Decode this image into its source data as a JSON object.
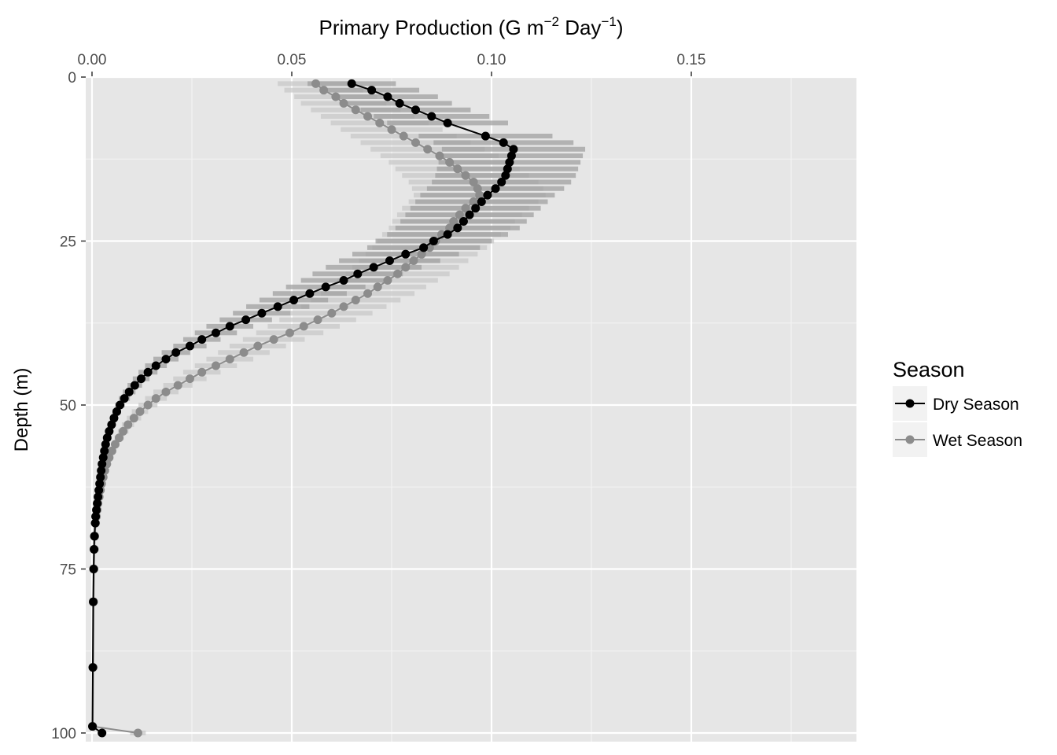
{
  "chart_data": {
    "type": "line",
    "title_main": "Primary Production (G m",
    "title_exp1": "−2",
    "title_mid": " Day",
    "title_exp2": "−1",
    "title_end": ")",
    "xaxis_position": "top",
    "ylabel": "Depth (m)",
    "yaxis_reversed": true,
    "xlim": [
      0.0,
      0.19
    ],
    "ylim": [
      0,
      101
    ],
    "xticks": [
      0.0,
      0.05,
      0.1,
      0.15
    ],
    "xtick_labels": [
      "0.00",
      "0.05",
      "0.10",
      "0.15"
    ],
    "yticks": [
      0,
      25,
      50,
      75,
      100
    ],
    "ytick_labels": [
      "0",
      "25",
      "50",
      "75",
      "100"
    ],
    "grid": true,
    "legend": {
      "title": "Season",
      "position": "right",
      "entries": [
        "Dry Season",
        "Wet Season"
      ]
    },
    "series": [
      {
        "name": "Dry Season",
        "color": "#000000",
        "errorbar_color": "#a0a0a0",
        "points": [
          [
            0.065,
            1
          ],
          [
            0.07,
            2
          ],
          [
            0.074,
            3
          ],
          [
            0.077,
            4
          ],
          [
            0.081,
            5
          ],
          [
            0.085,
            6
          ],
          [
            0.089,
            7
          ],
          [
            0.0985,
            9
          ],
          [
            0.103,
            10
          ],
          [
            0.1055,
            11
          ],
          [
            0.105,
            12
          ],
          [
            0.1045,
            13
          ],
          [
            0.104,
            14
          ],
          [
            0.1035,
            15
          ],
          [
            0.1025,
            16
          ],
          [
            0.101,
            17
          ],
          [
            0.099,
            18
          ],
          [
            0.0975,
            19
          ],
          [
            0.096,
            20
          ],
          [
            0.0945,
            21
          ],
          [
            0.093,
            22
          ],
          [
            0.0915,
            23
          ],
          [
            0.089,
            24
          ],
          [
            0.0855,
            25
          ],
          [
            0.083,
            26
          ],
          [
            0.0785,
            27
          ],
          [
            0.0745,
            28
          ],
          [
            0.0705,
            29
          ],
          [
            0.0665,
            30
          ],
          [
            0.063,
            31
          ],
          [
            0.0585,
            32
          ],
          [
            0.0545,
            33
          ],
          [
            0.0505,
            34
          ],
          [
            0.0465,
            35
          ],
          [
            0.0425,
            36
          ],
          [
            0.0385,
            37
          ],
          [
            0.0345,
            38
          ],
          [
            0.031,
            39
          ],
          [
            0.0275,
            40
          ],
          [
            0.0245,
            41
          ],
          [
            0.021,
            42
          ],
          [
            0.0185,
            43
          ],
          [
            0.016,
            44
          ],
          [
            0.014,
            45
          ],
          [
            0.0123,
            46
          ],
          [
            0.0107,
            47
          ],
          [
            0.0093,
            48
          ],
          [
            0.0081,
            49
          ],
          [
            0.007,
            50
          ],
          [
            0.0062,
            51
          ],
          [
            0.0055,
            52
          ],
          [
            0.0049,
            53
          ],
          [
            0.0043,
            54
          ],
          [
            0.0038,
            55
          ],
          [
            0.0034,
            56
          ],
          [
            0.0031,
            57
          ],
          [
            0.0028,
            58
          ],
          [
            0.0025,
            59
          ],
          [
            0.0023,
            60
          ],
          [
            0.0021,
            61
          ],
          [
            0.0019,
            62
          ],
          [
            0.0017,
            63
          ],
          [
            0.0015,
            64
          ],
          [
            0.0013,
            65
          ],
          [
            0.0011,
            66
          ],
          [
            0.0009,
            67
          ],
          [
            0.0008,
            68
          ],
          [
            0.0006,
            70
          ],
          [
            0.0005,
            72
          ],
          [
            0.0004,
            75
          ],
          [
            0.0003,
            80
          ],
          [
            0.0002,
            90
          ],
          [
            0.0001,
            99
          ],
          [
            0.0025,
            100
          ]
        ]
      },
      {
        "name": "Wet Season",
        "color": "#8c8c8c",
        "errorbar_color": "#c8c8c8",
        "points": [
          [
            0.056,
            1
          ],
          [
            0.058,
            2
          ],
          [
            0.061,
            3
          ],
          [
            0.063,
            4
          ],
          [
            0.066,
            5
          ],
          [
            0.069,
            6
          ],
          [
            0.072,
            7
          ],
          [
            0.075,
            8
          ],
          [
            0.078,
            9
          ],
          [
            0.081,
            10
          ],
          [
            0.084,
            11
          ],
          [
            0.087,
            12
          ],
          [
            0.0895,
            13
          ],
          [
            0.0915,
            14
          ],
          [
            0.0935,
            15
          ],
          [
            0.0955,
            16
          ],
          [
            0.0965,
            17
          ],
          [
            0.097,
            18
          ],
          [
            0.0955,
            19
          ],
          [
            0.0935,
            20
          ],
          [
            0.092,
            21
          ],
          [
            0.0905,
            22
          ],
          [
            0.0895,
            23
          ],
          [
            0.0875,
            24
          ],
          [
            0.086,
            25
          ],
          [
            0.0845,
            26
          ],
          [
            0.0825,
            27
          ],
          [
            0.0805,
            28
          ],
          [
            0.0785,
            29
          ],
          [
            0.0765,
            30
          ],
          [
            0.074,
            31
          ],
          [
            0.0715,
            32
          ],
          [
            0.069,
            33
          ],
          [
            0.066,
            34
          ],
          [
            0.063,
            35
          ],
          [
            0.06,
            36
          ],
          [
            0.0565,
            37
          ],
          [
            0.053,
            38
          ],
          [
            0.0495,
            39
          ],
          [
            0.0455,
            40
          ],
          [
            0.0415,
            41
          ],
          [
            0.038,
            42
          ],
          [
            0.0345,
            43
          ],
          [
            0.031,
            44
          ],
          [
            0.0275,
            45
          ],
          [
            0.0245,
            46
          ],
          [
            0.0215,
            47
          ],
          [
            0.0185,
            48
          ],
          [
            0.016,
            49
          ],
          [
            0.014,
            50
          ],
          [
            0.012,
            51
          ],
          [
            0.0105,
            52
          ],
          [
            0.009,
            53
          ],
          [
            0.0078,
            54
          ],
          [
            0.0068,
            55
          ],
          [
            0.0058,
            56
          ],
          [
            0.005,
            57
          ],
          [
            0.0043,
            58
          ],
          [
            0.0037,
            59
          ],
          [
            0.0032,
            60
          ],
          [
            0.0028,
            61
          ],
          [
            0.0024,
            62
          ],
          [
            0.0021,
            63
          ],
          [
            0.0018,
            64
          ],
          [
            0.0015,
            65
          ],
          [
            0.0013,
            66
          ],
          [
            0.0011,
            67
          ],
          [
            0.0009,
            68
          ],
          [
            0.0007,
            70
          ],
          [
            0.0006,
            72
          ],
          [
            0.0005,
            75
          ],
          [
            0.0004,
            80
          ],
          [
            0.0003,
            90
          ],
          [
            0.0002,
            99
          ],
          [
            0.0115,
            100
          ]
        ]
      }
    ]
  }
}
